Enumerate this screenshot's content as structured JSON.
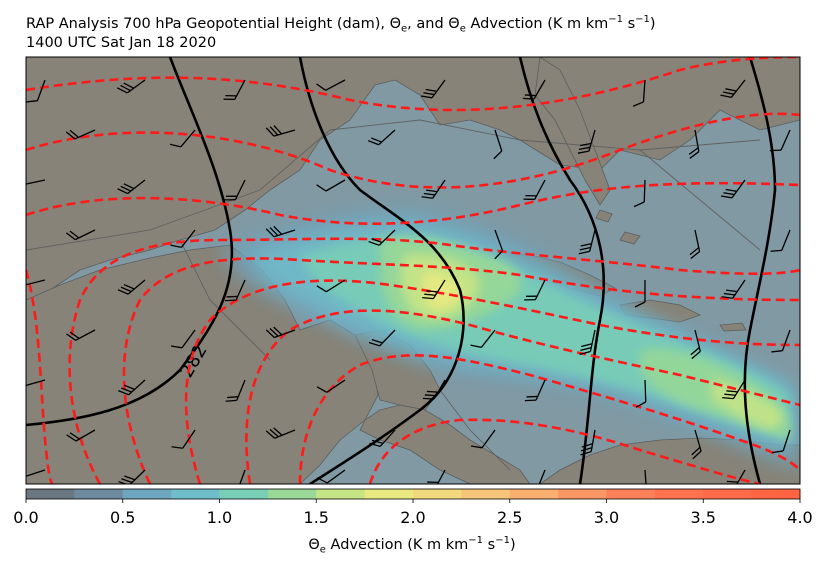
{
  "title": {
    "line1_prefix": "RAP Analysis 700 hPa Geopotential Height (dam), Θ",
    "line1_sub1": "e",
    "line1_mid": ", and Θ",
    "line1_sub2": "e",
    "line1_mid2": " Advection (K m km",
    "line1_sup1": "−1",
    "line1_mid3": " s",
    "line1_sup2": "−1",
    "line1_end": ")",
    "line2": "1400 UTC Sat Jan 18 2020"
  },
  "map": {
    "contour_label": "282",
    "colors": {
      "land": "#bf9a6a",
      "ocean": "#a8dbe6",
      "height_contour": "#000000",
      "theta_e_contour": "#ff1a1a",
      "barb": "#000000"
    }
  },
  "colorbar": {
    "ticks": [
      "0.0",
      "0.5",
      "1.0",
      "1.5",
      "2.0",
      "2.5",
      "3.0",
      "3.5",
      "4.0"
    ],
    "label_prefix": "Θ",
    "label_sub": "e",
    "label_mid": " Advection (K m km",
    "label_sup1": "−1",
    "label_mid2": " s",
    "label_sup2": "−1",
    "label_end": ")",
    "colors": [
      "#6b7780",
      "#6e8a9f",
      "#6ea5bf",
      "#6fbcca",
      "#79cfb5",
      "#99d896",
      "#c5e486",
      "#e8e981",
      "#f3d97e",
      "#f7c57a",
      "#f8af6f",
      "#fa9764",
      "#fc815a",
      "#fe7250",
      "#ff6a48",
      "#ff6443"
    ]
  }
}
